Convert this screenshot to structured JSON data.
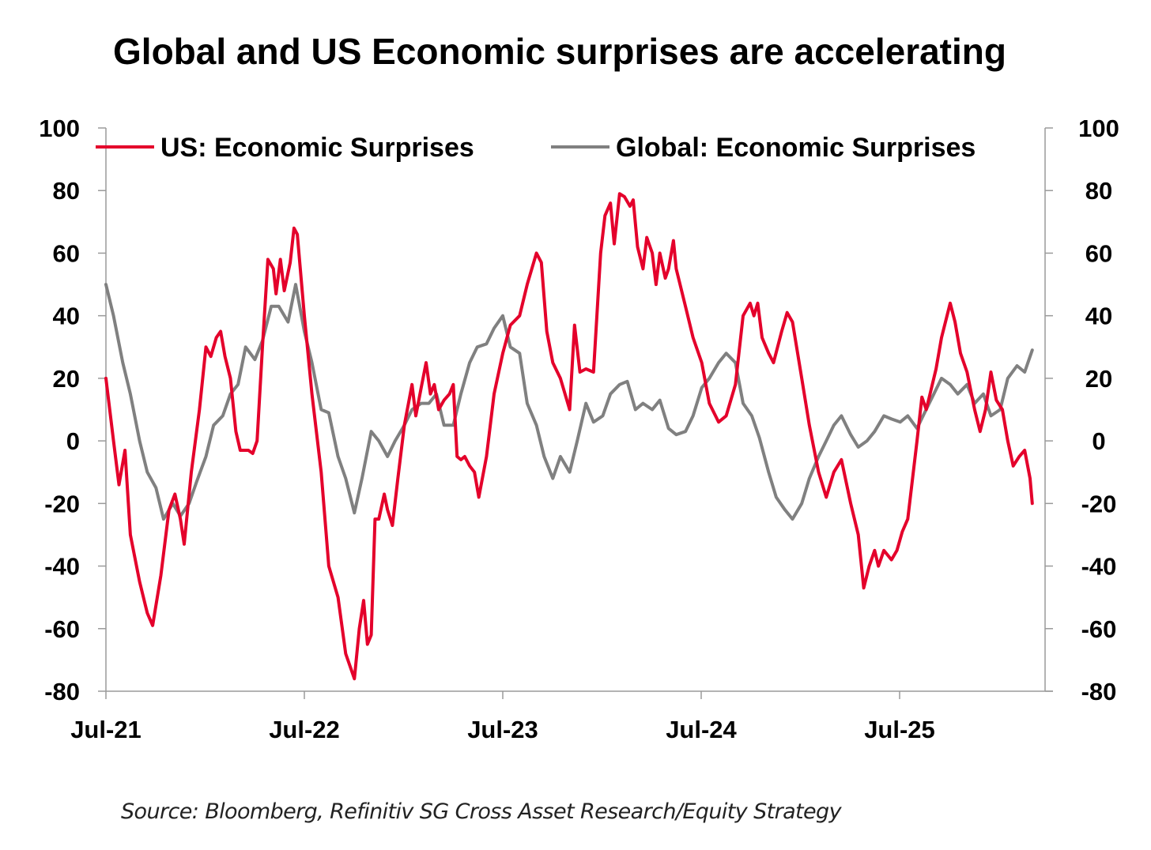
{
  "chart_data": {
    "type": "line",
    "title": "Global and US Economic surprises are accelerating",
    "source": "Source: Bloomberg, Refinitiv SG Cross Asset Research/Equity Strategy",
    "x_tick_labels": [
      "Jul-21",
      "Jul-22",
      "Jul-23",
      "Jul-24",
      "Jul-25"
    ],
    "x_range": [
      "2021-07",
      "2026-03"
    ],
    "ylim": [
      -80,
      100
    ],
    "y_ticks": [
      100,
      80,
      60,
      40,
      20,
      0,
      -20,
      -40,
      -60,
      -80
    ],
    "y_ticks_right": [
      100,
      80,
      60,
      40,
      20,
      0,
      -20,
      -40,
      -60,
      -80
    ],
    "legend_position": "top",
    "grid": false,
    "series": [
      {
        "name": "US: Economic Surprises",
        "color": "#e4002b",
        "points": [
          [
            "2021-07-01",
            20
          ],
          [
            "2021-07-15",
            0
          ],
          [
            "2021-07-25",
            -14
          ],
          [
            "2021-08-05",
            -3
          ],
          [
            "2021-08-15",
            -30
          ],
          [
            "2021-09-01",
            -45
          ],
          [
            "2021-09-15",
            -55
          ],
          [
            "2021-09-25",
            -59
          ],
          [
            "2021-10-10",
            -43
          ],
          [
            "2021-10-25",
            -22
          ],
          [
            "2021-11-05",
            -17
          ],
          [
            "2021-11-15",
            -25
          ],
          [
            "2021-11-22",
            -33
          ],
          [
            "2021-12-05",
            -10
          ],
          [
            "2021-12-20",
            10
          ],
          [
            "2022-01-01",
            30
          ],
          [
            "2022-01-10",
            27
          ],
          [
            "2022-01-20",
            33
          ],
          [
            "2022-01-28",
            35
          ],
          [
            "2022-02-05",
            27
          ],
          [
            "2022-02-15",
            20
          ],
          [
            "2022-02-25",
            3
          ],
          [
            "2022-03-05",
            -3
          ],
          [
            "2022-03-20",
            -3
          ],
          [
            "2022-03-28",
            -4
          ],
          [
            "2022-04-05",
            0
          ],
          [
            "2022-04-15",
            30
          ],
          [
            "2022-04-25",
            58
          ],
          [
            "2022-05-05",
            55
          ],
          [
            "2022-05-10",
            47
          ],
          [
            "2022-05-18",
            58
          ],
          [
            "2022-05-25",
            48
          ],
          [
            "2022-06-05",
            57
          ],
          [
            "2022-06-12",
            68
          ],
          [
            "2022-06-18",
            66
          ],
          [
            "2022-07-01",
            40
          ],
          [
            "2022-07-15",
            15
          ],
          [
            "2022-08-01",
            -10
          ],
          [
            "2022-08-15",
            -40
          ],
          [
            "2022-09-01",
            -50
          ],
          [
            "2022-09-15",
            -68
          ],
          [
            "2022-10-01",
            -76
          ],
          [
            "2022-10-10",
            -60
          ],
          [
            "2022-10-18",
            -51
          ],
          [
            "2022-10-25",
            -65
          ],
          [
            "2022-11-01",
            -62
          ],
          [
            "2022-11-08",
            -25
          ],
          [
            "2022-11-15",
            -25
          ],
          [
            "2022-11-25",
            -17
          ],
          [
            "2022-12-01",
            -22
          ],
          [
            "2022-12-10",
            -27
          ],
          [
            "2022-12-20",
            -12
          ],
          [
            "2023-01-01",
            5
          ],
          [
            "2023-01-15",
            18
          ],
          [
            "2023-01-22",
            8
          ],
          [
            "2023-02-01",
            17
          ],
          [
            "2023-02-10",
            25
          ],
          [
            "2023-02-18",
            15
          ],
          [
            "2023-02-25",
            18
          ],
          [
            "2023-03-05",
            10
          ],
          [
            "2023-03-15",
            13
          ],
          [
            "2023-03-25",
            15
          ],
          [
            "2023-04-01",
            18
          ],
          [
            "2023-04-08",
            -5
          ],
          [
            "2023-04-15",
            -6
          ],
          [
            "2023-04-22",
            -5
          ],
          [
            "2023-05-01",
            -8
          ],
          [
            "2023-05-10",
            -10
          ],
          [
            "2023-05-18",
            -18
          ],
          [
            "2023-06-01",
            -5
          ],
          [
            "2023-06-15",
            15
          ],
          [
            "2023-07-01",
            28
          ],
          [
            "2023-07-15",
            37
          ],
          [
            "2023-08-01",
            40
          ],
          [
            "2023-08-15",
            50
          ],
          [
            "2023-09-01",
            60
          ],
          [
            "2023-09-10",
            57
          ],
          [
            "2023-09-20",
            35
          ],
          [
            "2023-10-01",
            25
          ],
          [
            "2023-10-15",
            20
          ],
          [
            "2023-11-01",
            10
          ],
          [
            "2023-11-10",
            37
          ],
          [
            "2023-11-20",
            22
          ],
          [
            "2023-12-01",
            23
          ],
          [
            "2023-12-15",
            22
          ],
          [
            "2023-12-28",
            60
          ],
          [
            "2024-01-05",
            72
          ],
          [
            "2024-01-15",
            76
          ],
          [
            "2024-01-22",
            63
          ],
          [
            "2024-02-01",
            79
          ],
          [
            "2024-02-10",
            78
          ],
          [
            "2024-02-20",
            75
          ],
          [
            "2024-02-26",
            77
          ],
          [
            "2024-03-05",
            62
          ],
          [
            "2024-03-15",
            55
          ],
          [
            "2024-03-22",
            65
          ],
          [
            "2024-04-01",
            60
          ],
          [
            "2024-04-08",
            50
          ],
          [
            "2024-04-15",
            60
          ],
          [
            "2024-04-25",
            52
          ],
          [
            "2024-05-01",
            55
          ],
          [
            "2024-05-10",
            64
          ],
          [
            "2024-05-15",
            55
          ],
          [
            "2024-06-01",
            43
          ],
          [
            "2024-06-15",
            33
          ],
          [
            "2024-07-01",
            25
          ],
          [
            "2024-07-15",
            12
          ],
          [
            "2024-08-01",
            6
          ],
          [
            "2024-08-15",
            8
          ],
          [
            "2024-09-01",
            18
          ],
          [
            "2024-09-15",
            40
          ],
          [
            "2024-09-28",
            44
          ],
          [
            "2024-10-05",
            40
          ],
          [
            "2024-10-12",
            44
          ],
          [
            "2024-10-20",
            33
          ],
          [
            "2024-11-01",
            28
          ],
          [
            "2024-11-10",
            25
          ],
          [
            "2024-11-25",
            35
          ],
          [
            "2024-12-05",
            41
          ],
          [
            "2024-12-15",
            38
          ],
          [
            "2025-01-01",
            20
          ],
          [
            "2025-01-15",
            5
          ],
          [
            "2025-02-01",
            -10
          ],
          [
            "2025-02-15",
            -18
          ],
          [
            "2025-03-01",
            -10
          ],
          [
            "2025-03-15",
            -6
          ],
          [
            "2025-04-01",
            -20
          ],
          [
            "2025-04-15",
            -30
          ],
          [
            "2025-04-25",
            -47
          ],
          [
            "2025-05-05",
            -40
          ],
          [
            "2025-05-15",
            -35
          ],
          [
            "2025-05-22",
            -40
          ],
          [
            "2025-06-01",
            -35
          ],
          [
            "2025-06-15",
            -38
          ],
          [
            "2025-06-25",
            -35
          ],
          [
            "2025-07-05",
            -29
          ],
          [
            "2025-07-15",
            -25
          ],
          [
            "2025-08-01",
            0
          ],
          [
            "2025-08-10",
            14
          ],
          [
            "2025-08-18",
            10
          ],
          [
            "2025-08-25",
            15
          ],
          [
            "2025-09-05",
            23
          ],
          [
            "2025-09-15",
            33
          ],
          [
            "2025-10-01",
            44
          ],
          [
            "2025-10-10",
            38
          ],
          [
            "2025-10-20",
            28
          ],
          [
            "2025-11-01",
            22
          ],
          [
            "2025-11-15",
            10
          ],
          [
            "2025-11-25",
            3
          ],
          [
            "2025-12-05",
            10
          ],
          [
            "2025-12-15",
            22
          ],
          [
            "2025-12-25",
            13
          ],
          [
            "2026-01-05",
            10
          ],
          [
            "2026-01-15",
            0
          ],
          [
            "2026-01-25",
            -8
          ],
          [
            "2026-02-05",
            -5
          ],
          [
            "2026-02-15",
            -3
          ],
          [
            "2026-02-25",
            -12
          ],
          [
            "2026-03-01",
            -20
          ]
        ]
      },
      {
        "name": "Global: Economic Surprises",
        "color": "#808080",
        "points": [
          [
            "2021-07-01",
            50
          ],
          [
            "2021-07-15",
            40
          ],
          [
            "2021-08-01",
            25
          ],
          [
            "2021-08-15",
            15
          ],
          [
            "2021-09-01",
            0
          ],
          [
            "2021-09-15",
            -10
          ],
          [
            "2021-10-01",
            -15
          ],
          [
            "2021-10-15",
            -25
          ],
          [
            "2021-11-01",
            -20
          ],
          [
            "2021-11-15",
            -24
          ],
          [
            "2021-12-01",
            -20
          ],
          [
            "2021-12-15",
            -13
          ],
          [
            "2022-01-01",
            -5
          ],
          [
            "2022-01-15",
            5
          ],
          [
            "2022-02-01",
            8
          ],
          [
            "2022-02-15",
            15
          ],
          [
            "2022-03-01",
            18
          ],
          [
            "2022-03-15",
            30
          ],
          [
            "2022-04-01",
            26
          ],
          [
            "2022-04-15",
            32
          ],
          [
            "2022-05-01",
            43
          ],
          [
            "2022-05-15",
            43
          ],
          [
            "2022-06-01",
            38
          ],
          [
            "2022-06-15",
            50
          ],
          [
            "2022-07-01",
            35
          ],
          [
            "2022-07-15",
            25
          ],
          [
            "2022-08-01",
            10
          ],
          [
            "2022-08-15",
            9
          ],
          [
            "2022-09-01",
            -5
          ],
          [
            "2022-09-15",
            -12
          ],
          [
            "2022-10-01",
            -23
          ],
          [
            "2022-10-15",
            -12
          ],
          [
            "2022-11-01",
            3
          ],
          [
            "2022-11-15",
            0
          ],
          [
            "2022-12-01",
            -5
          ],
          [
            "2022-12-15",
            0
          ],
          [
            "2023-01-01",
            5
          ],
          [
            "2023-01-15",
            10
          ],
          [
            "2023-02-01",
            12
          ],
          [
            "2023-02-15",
            12
          ],
          [
            "2023-03-01",
            15
          ],
          [
            "2023-03-15",
            5
          ],
          [
            "2023-04-01",
            5
          ],
          [
            "2023-04-15",
            15
          ],
          [
            "2023-05-01",
            25
          ],
          [
            "2023-05-15",
            30
          ],
          [
            "2023-06-01",
            31
          ],
          [
            "2023-06-15",
            36
          ],
          [
            "2023-07-01",
            40
          ],
          [
            "2023-07-15",
            30
          ],
          [
            "2023-08-01",
            28
          ],
          [
            "2023-08-15",
            12
          ],
          [
            "2023-09-01",
            5
          ],
          [
            "2023-09-15",
            -5
          ],
          [
            "2023-10-01",
            -12
          ],
          [
            "2023-10-15",
            -5
          ],
          [
            "2023-11-01",
            -10
          ],
          [
            "2023-11-15",
            0
          ],
          [
            "2023-12-01",
            12
          ],
          [
            "2023-12-15",
            6
          ],
          [
            "2024-01-01",
            8
          ],
          [
            "2024-01-15",
            15
          ],
          [
            "2024-02-01",
            18
          ],
          [
            "2024-02-15",
            19
          ],
          [
            "2024-03-01",
            10
          ],
          [
            "2024-03-15",
            12
          ],
          [
            "2024-04-01",
            10
          ],
          [
            "2024-04-15",
            13
          ],
          [
            "2024-05-01",
            4
          ],
          [
            "2024-05-15",
            2
          ],
          [
            "2024-06-01",
            3
          ],
          [
            "2024-06-15",
            8
          ],
          [
            "2024-07-01",
            17
          ],
          [
            "2024-07-15",
            20
          ],
          [
            "2024-08-01",
            25
          ],
          [
            "2024-08-15",
            28
          ],
          [
            "2024-09-01",
            25
          ],
          [
            "2024-09-15",
            12
          ],
          [
            "2024-10-01",
            8
          ],
          [
            "2024-10-15",
            1
          ],
          [
            "2024-11-01",
            -10
          ],
          [
            "2024-11-15",
            -18
          ],
          [
            "2024-12-01",
            -22
          ],
          [
            "2024-12-15",
            -25
          ],
          [
            "2025-01-01",
            -20
          ],
          [
            "2025-01-15",
            -12
          ],
          [
            "2025-02-01",
            -5
          ],
          [
            "2025-02-15",
            0
          ],
          [
            "2025-03-01",
            5
          ],
          [
            "2025-03-15",
            8
          ],
          [
            "2025-04-01",
            2
          ],
          [
            "2025-04-15",
            -2
          ],
          [
            "2025-05-01",
            0
          ],
          [
            "2025-05-15",
            3
          ],
          [
            "2025-06-01",
            8
          ],
          [
            "2025-06-15",
            7
          ],
          [
            "2025-07-01",
            6
          ],
          [
            "2025-07-15",
            8
          ],
          [
            "2025-08-01",
            4
          ],
          [
            "2025-08-15",
            9
          ],
          [
            "2025-09-01",
            15
          ],
          [
            "2025-09-15",
            20
          ],
          [
            "2025-10-01",
            18
          ],
          [
            "2025-10-15",
            15
          ],
          [
            "2025-11-01",
            18
          ],
          [
            "2025-11-15",
            12
          ],
          [
            "2025-12-01",
            15
          ],
          [
            "2025-12-15",
            8
          ],
          [
            "2026-01-01",
            10
          ],
          [
            "2026-01-15",
            20
          ],
          [
            "2026-02-01",
            24
          ],
          [
            "2026-02-15",
            22
          ],
          [
            "2026-03-01",
            29
          ]
        ]
      }
    ]
  }
}
